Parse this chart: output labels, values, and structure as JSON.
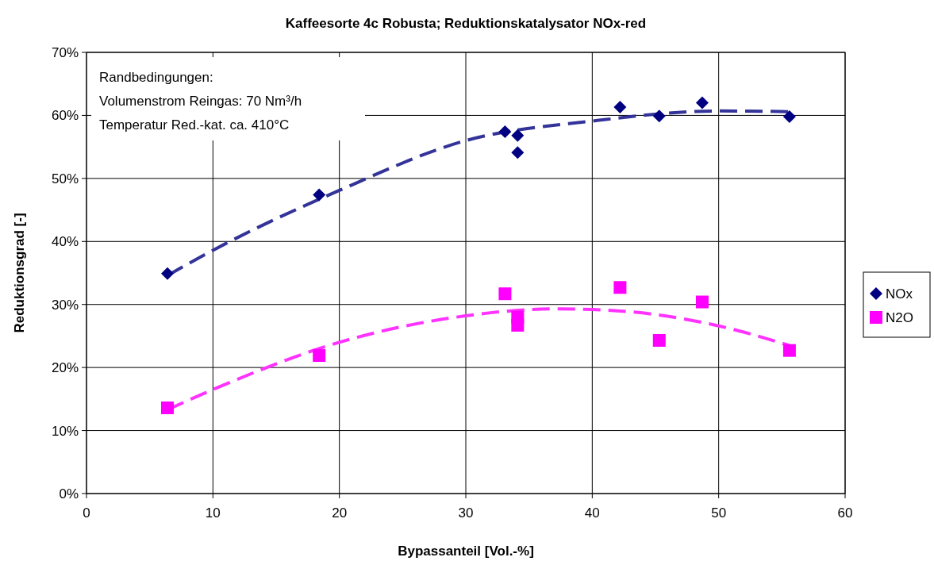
{
  "chart_data": {
    "type": "scatter",
    "title": "Kaffeesorte 4c Robusta; Reduktionskatalysator NOx-red",
    "xlabel": "Bypassanteil [Vol.-%]",
    "ylabel": "Reduktionsgrad [-]",
    "xlim": [
      0,
      60
    ],
    "xticks": [
      0,
      10,
      20,
      30,
      40,
      50,
      60
    ],
    "ylim": [
      0,
      70
    ],
    "yticks": [
      {
        "value": 0,
        "label": "0%"
      },
      {
        "value": 10,
        "label": "10%"
      },
      {
        "value": 20,
        "label": "20%"
      },
      {
        "value": 30,
        "label": "30%"
      },
      {
        "value": 40,
        "label": "40%"
      },
      {
        "value": 50,
        "label": "50%"
      },
      {
        "value": 60,
        "label": "60%"
      },
      {
        "value": 70,
        "label": "70%"
      }
    ],
    "grid": true,
    "legend": "right",
    "annotations": [
      "Randbedingungen:",
      "Volumenstrom Reingas: 70 Nm³/h",
      "Temperatur Red.-kat. ca. 410°C"
    ],
    "series": [
      {
        "type": "line",
        "color": "#333399",
        "line_style": "dashed",
        "x": [
          6.4,
          10,
          20,
          30,
          40,
          50,
          55.6
        ],
        "values": [
          34.6,
          38.6,
          48.1,
          56,
          59.1,
          60.7,
          60.6
        ]
      },
      {
        "type": "line",
        "color": "#ff33ff",
        "line_style": "dashed",
        "x": [
          6.4,
          10,
          20,
          30,
          37,
          40,
          45,
          50,
          55.6
        ],
        "values": [
          13.3,
          16.5,
          24,
          28.2,
          29.3,
          29.2,
          28.4,
          26.6,
          23.5
        ]
      },
      {
        "name": "NOx",
        "color": "#000080",
        "marker": "diamond",
        "x": [
          6.4,
          18.4,
          33.1,
          34.1,
          34.1,
          42.2,
          45.3,
          48.7,
          55.6
        ],
        "values": [
          34.9,
          47.4,
          57.4,
          56.8,
          54.1,
          61.3,
          59.9,
          62.0,
          59.8
        ]
      },
      {
        "name": "N2O",
        "color": "#ff00ff",
        "marker": "square",
        "x": [
          6.4,
          18.4,
          33.1,
          34.1,
          34.1,
          42.2,
          45.3,
          48.7,
          55.6
        ],
        "values": [
          13.6,
          21.9,
          31.7,
          28.0,
          26.7,
          32.7,
          24.3,
          30.4,
          22.7
        ]
      }
    ]
  }
}
